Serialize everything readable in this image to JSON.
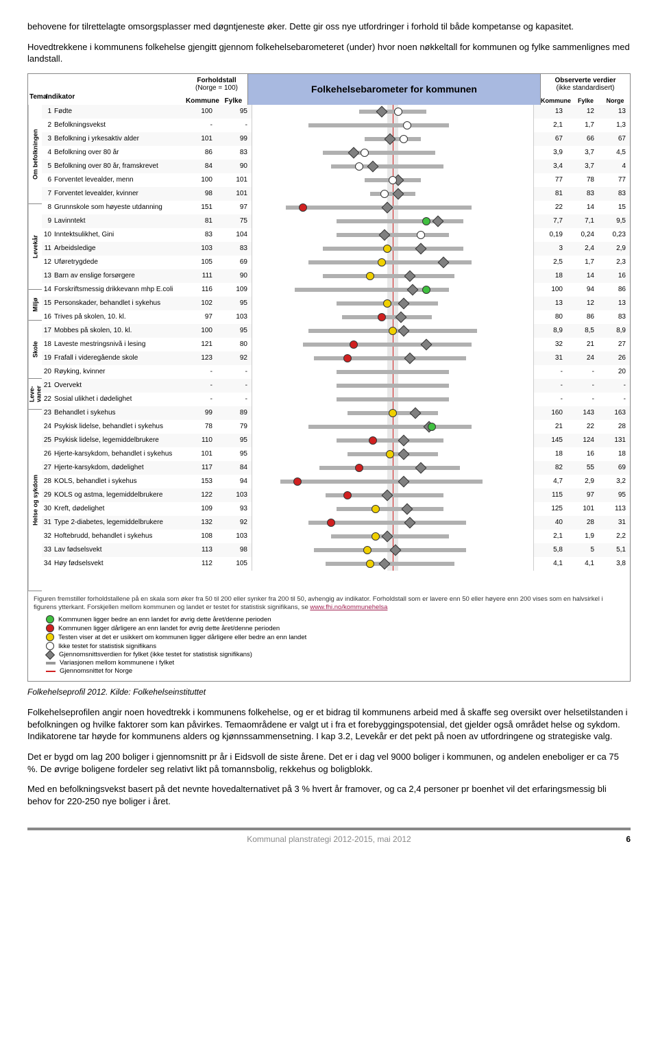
{
  "intro": {
    "p1": "behovene for tilrettelagte omsorgsplasser med døgntjeneste øker. Dette gir oss nye utfordringer i forhold til både kompetanse og kapasitet.",
    "p2": "Hovedtrekkene i kommunens folkehelse gjengitt gjennom folkehelsebarometeret (under) hvor noen nøkkeltall for kommunen og fylke sammenlignes med landstall."
  },
  "chart": {
    "title": "Folkehelsebarometer for kommunen",
    "forhold_label": "Forholdstall",
    "forhold_sub": "(Norge = 100)",
    "obs_label": "Observerte verdier",
    "obs_sub": "(ikke standardisert)",
    "col_tema": "Tema",
    "col_indikator": "Indikator",
    "col_kommune": "Kommune",
    "col_fylke": "Fylke",
    "col_norge": "Norge",
    "groups": [
      {
        "label": "Om befolkningen",
        "rows": 7
      },
      {
        "label": "Levekår",
        "rows": 6
      },
      {
        "label": "Miljø",
        "rows": 2
      },
      {
        "label": "Skole",
        "rows": 4
      },
      {
        "label": "Leve-\nvaner",
        "rows": 2
      },
      {
        "label": "Helse og sykdom",
        "rows": 13
      }
    ],
    "rows": [
      {
        "n": 1,
        "ind": "Fødte",
        "k": "100",
        "f": "95",
        "mark": {
          "pos": 52,
          "shape": "circle",
          "color": "#fff"
        },
        "dia": {
          "pos": 46,
          "color": "#808080"
        },
        "range": [
          38,
          62
        ],
        "ok": "13",
        "of": "12",
        "on": "13"
      },
      {
        "n": 2,
        "ind": "Befolkningsvekst",
        "k": "-",
        "f": "-",
        "mark": {
          "pos": 55,
          "shape": "circle",
          "color": "#fff"
        },
        "range": [
          20,
          70
        ],
        "ok": "2,1",
        "of": "1,7",
        "on": "1,3"
      },
      {
        "n": 3,
        "ind": "Befolkning i yrkesaktiv alder",
        "k": "101",
        "f": "99",
        "mark": {
          "pos": 54,
          "shape": "circle",
          "color": "#fff"
        },
        "dia": {
          "pos": 49,
          "color": "#808080"
        },
        "range": [
          40,
          60
        ],
        "ok": "67",
        "of": "66",
        "on": "67"
      },
      {
        "n": 4,
        "ind": "Befolkning over 80 år",
        "k": "86",
        "f": "83",
        "mark": {
          "pos": 40,
          "shape": "circle",
          "color": "#fff"
        },
        "dia": {
          "pos": 36,
          "color": "#808080"
        },
        "range": [
          25,
          65
        ],
        "ok": "3,9",
        "of": "3,7",
        "on": "4,5"
      },
      {
        "n": 5,
        "ind": "Befolkning over 80 år, framskrevet",
        "k": "84",
        "f": "90",
        "mark": {
          "pos": 38,
          "shape": "circle",
          "color": "#fff"
        },
        "dia": {
          "pos": 43,
          "color": "#808080"
        },
        "range": [
          28,
          68
        ],
        "ok": "3,4",
        "of": "3,7",
        "on": "4"
      },
      {
        "n": 6,
        "ind": "Forventet levealder, menn",
        "k": "100",
        "f": "101",
        "mark": {
          "pos": 50,
          "shape": "circle",
          "color": "#fff"
        },
        "dia": {
          "pos": 52,
          "color": "#808080"
        },
        "range": [
          40,
          60
        ],
        "ok": "77",
        "of": "78",
        "on": "77"
      },
      {
        "n": 7,
        "ind": "Forventet levealder, kvinner",
        "k": "98",
        "f": "101",
        "mark": {
          "pos": 47,
          "shape": "circle",
          "color": "#fff"
        },
        "dia": {
          "pos": 52,
          "color": "#808080"
        },
        "range": [
          42,
          58
        ],
        "ok": "81",
        "of": "83",
        "on": "83"
      },
      {
        "n": 8,
        "ind": "Grunnskole som høyeste utdanning",
        "k": "151",
        "f": "97",
        "mark": {
          "pos": 18,
          "shape": "circle",
          "color": "#d02020"
        },
        "dia": {
          "pos": 48,
          "color": "#808080"
        },
        "range": [
          12,
          78
        ],
        "ok": "22",
        "of": "14",
        "on": "15"
      },
      {
        "n": 9,
        "ind": "Lavinntekt",
        "k": "81",
        "f": "75",
        "mark": {
          "pos": 62,
          "shape": "circle",
          "color": "#40c040"
        },
        "dia": {
          "pos": 66,
          "color": "#808080"
        },
        "range": [
          30,
          75
        ],
        "ok": "7,7",
        "of": "7,1",
        "on": "9,5"
      },
      {
        "n": 10,
        "ind": "Inntektsulikhet, Gini",
        "k": "83",
        "f": "104",
        "mark": {
          "pos": 60,
          "shape": "circle",
          "color": "#fff"
        },
        "dia": {
          "pos": 47,
          "color": "#808080"
        },
        "range": [
          30,
          70
        ],
        "ok": "0,19",
        "of": "0,24",
        "on": "0,23"
      },
      {
        "n": 11,
        "ind": "Arbeidsledige",
        "k": "103",
        "f": "83",
        "mark": {
          "pos": 48,
          "shape": "circle",
          "color": "#f0d000"
        },
        "dia": {
          "pos": 60,
          "color": "#808080"
        },
        "range": [
          25,
          75
        ],
        "ok": "3",
        "of": "2,4",
        "on": "2,9"
      },
      {
        "n": 12,
        "ind": "Uføretrygdede",
        "k": "105",
        "f": "69",
        "mark": {
          "pos": 46,
          "shape": "circle",
          "color": "#f0d000"
        },
        "dia": {
          "pos": 68,
          "color": "#808080"
        },
        "range": [
          20,
          78
        ],
        "ok": "2,5",
        "of": "1,7",
        "on": "2,3"
      },
      {
        "n": 13,
        "ind": "Barn av enslige forsørgere",
        "k": "111",
        "f": "90",
        "mark": {
          "pos": 42,
          "shape": "circle",
          "color": "#f0d000"
        },
        "dia": {
          "pos": 56,
          "color": "#808080"
        },
        "range": [
          25,
          72
        ],
        "ok": "18",
        "of": "14",
        "on": "16"
      },
      {
        "n": 14,
        "ind": "Forskriftsmessig drikkevann mhp E.coli",
        "k": "116",
        "f": "109",
        "mark": {
          "pos": 62,
          "shape": "circle",
          "color": "#40c040"
        },
        "dia": {
          "pos": 57,
          "color": "#808080"
        },
        "range": [
          15,
          70
        ],
        "ok": "100",
        "of": "94",
        "on": "86"
      },
      {
        "n": 15,
        "ind": "Personskader, behandlet i sykehus",
        "k": "102",
        "f": "95",
        "mark": {
          "pos": 48,
          "shape": "circle",
          "color": "#f0d000"
        },
        "dia": {
          "pos": 54,
          "color": "#808080"
        },
        "range": [
          30,
          66
        ],
        "ok": "13",
        "of": "12",
        "on": "13"
      },
      {
        "n": 16,
        "ind": "Trives på skolen, 10. kl.",
        "k": "97",
        "f": "103",
        "mark": {
          "pos": 46,
          "shape": "circle",
          "color": "#d02020"
        },
        "dia": {
          "pos": 53,
          "color": "#808080"
        },
        "range": [
          32,
          64
        ],
        "ok": "80",
        "of": "86",
        "on": "83"
      },
      {
        "n": 17,
        "ind": "Mobbes på skolen, 10. kl.",
        "k": "100",
        "f": "95",
        "mark": {
          "pos": 50,
          "shape": "circle",
          "color": "#f0d000"
        },
        "dia": {
          "pos": 54,
          "color": "#808080"
        },
        "range": [
          20,
          80
        ],
        "ok": "8,9",
        "of": "8,5",
        "on": "8,9"
      },
      {
        "n": 18,
        "ind": "Laveste mestringsnivå i lesing",
        "k": "121",
        "f": "80",
        "mark": {
          "pos": 36,
          "shape": "circle",
          "color": "#d02020"
        },
        "dia": {
          "pos": 62,
          "color": "#808080"
        },
        "range": [
          18,
          78
        ],
        "ok": "32",
        "of": "21",
        "on": "27"
      },
      {
        "n": 19,
        "ind": "Frafall i videregående skole",
        "k": "123",
        "f": "92",
        "mark": {
          "pos": 34,
          "shape": "circle",
          "color": "#d02020"
        },
        "dia": {
          "pos": 56,
          "color": "#808080"
        },
        "range": [
          22,
          76
        ],
        "ok": "31",
        "of": "24",
        "on": "26"
      },
      {
        "n": 20,
        "ind": "Røyking, kvinner",
        "k": "-",
        "f": "-",
        "range": [
          30,
          70
        ],
        "ok": "-",
        "of": "-",
        "on": "20"
      },
      {
        "n": 21,
        "ind": "Overvekt",
        "k": "-",
        "f": "-",
        "range": [
          30,
          70
        ],
        "ok": "-",
        "of": "-",
        "on": "-"
      },
      {
        "n": 22,
        "ind": "Sosial ulikhet i dødelighet",
        "k": "-",
        "f": "-",
        "range": [
          30,
          70
        ],
        "ok": "-",
        "of": "-",
        "on": "-"
      },
      {
        "n": 23,
        "ind": "Behandlet i sykehus",
        "k": "99",
        "f": "89",
        "mark": {
          "pos": 50,
          "shape": "circle",
          "color": "#f0d000"
        },
        "dia": {
          "pos": 58,
          "color": "#808080"
        },
        "range": [
          34,
          66
        ],
        "ok": "160",
        "of": "143",
        "on": "163"
      },
      {
        "n": 24,
        "ind": "Psykisk lidelse, behandlet i sykehus",
        "k": "78",
        "f": "79",
        "mark": {
          "pos": 64,
          "shape": "circle",
          "color": "#40c040"
        },
        "dia": {
          "pos": 63,
          "color": "#808080"
        },
        "range": [
          20,
          78
        ],
        "ok": "21",
        "of": "22",
        "on": "28"
      },
      {
        "n": 25,
        "ind": "Psykisk lidelse, legemiddelbrukere",
        "k": "110",
        "f": "95",
        "mark": {
          "pos": 43,
          "shape": "circle",
          "color": "#d02020"
        },
        "dia": {
          "pos": 54,
          "color": "#808080"
        },
        "range": [
          30,
          68
        ],
        "ok": "145",
        "of": "124",
        "on": "131"
      },
      {
        "n": 26,
        "ind": "Hjerte-karsykdom, behandlet i sykehus",
        "k": "101",
        "f": "95",
        "mark": {
          "pos": 49,
          "shape": "circle",
          "color": "#f0d000"
        },
        "dia": {
          "pos": 54,
          "color": "#808080"
        },
        "range": [
          34,
          66
        ],
        "ok": "18",
        "of": "16",
        "on": "18"
      },
      {
        "n": 27,
        "ind": "Hjerte-karsykdom, dødelighet",
        "k": "117",
        "f": "84",
        "mark": {
          "pos": 38,
          "shape": "circle",
          "color": "#d02020"
        },
        "dia": {
          "pos": 60,
          "color": "#808080"
        },
        "range": [
          24,
          74
        ],
        "ok": "82",
        "of": "55",
        "on": "69"
      },
      {
        "n": 28,
        "ind": "KOLS, behandlet i sykehus",
        "k": "153",
        "f": "94",
        "mark": {
          "pos": 16,
          "shape": "circle",
          "color": "#d02020"
        },
        "dia": {
          "pos": 54,
          "color": "#808080"
        },
        "range": [
          10,
          82
        ],
        "ok": "4,7",
        "of": "2,9",
        "on": "3,2"
      },
      {
        "n": 29,
        "ind": "KOLS og astma, legemiddelbrukere",
        "k": "122",
        "f": "103",
        "mark": {
          "pos": 34,
          "shape": "circle",
          "color": "#d02020"
        },
        "dia": {
          "pos": 48,
          "color": "#808080"
        },
        "range": [
          26,
          68
        ],
        "ok": "115",
        "of": "97",
        "on": "95"
      },
      {
        "n": 30,
        "ind": "Kreft, dødelighet",
        "k": "109",
        "f": "93",
        "mark": {
          "pos": 44,
          "shape": "circle",
          "color": "#f0d000"
        },
        "dia": {
          "pos": 55,
          "color": "#808080"
        },
        "range": [
          30,
          68
        ],
        "ok": "125",
        "of": "101",
        "on": "113"
      },
      {
        "n": 31,
        "ind": "Type 2-diabetes, legemiddelbrukere",
        "k": "132",
        "f": "92",
        "mark": {
          "pos": 28,
          "shape": "circle",
          "color": "#d02020"
        },
        "dia": {
          "pos": 56,
          "color": "#808080"
        },
        "range": [
          20,
          76
        ],
        "ok": "40",
        "of": "28",
        "on": "31"
      },
      {
        "n": 32,
        "ind": "Hoftebrudd, behandlet i sykehus",
        "k": "108",
        "f": "103",
        "mark": {
          "pos": 44,
          "shape": "circle",
          "color": "#f0d000"
        },
        "dia": {
          "pos": 48,
          "color": "#808080"
        },
        "range": [
          28,
          70
        ],
        "ok": "2,1",
        "of": "1,9",
        "on": "2,2"
      },
      {
        "n": 33,
        "ind": "Lav fødselsvekt",
        "k": "113",
        "f": "98",
        "mark": {
          "pos": 41,
          "shape": "circle",
          "color": "#f0d000"
        },
        "dia": {
          "pos": 51,
          "color": "#808080"
        },
        "range": [
          22,
          76
        ],
        "ok": "5,8",
        "of": "5",
        "on": "5,1"
      },
      {
        "n": 34,
        "ind": "Høy fødselsvekt",
        "k": "112",
        "f": "105",
        "mark": {
          "pos": 42,
          "shape": "circle",
          "color": "#f0d000"
        },
        "dia": {
          "pos": 47,
          "color": "#808080"
        },
        "range": [
          26,
          72
        ],
        "ok": "4,1",
        "of": "4,1",
        "on": "3,8"
      }
    ],
    "footnote_text": "Figuren fremstiller forholdstallene på en skala som øker fra 50 til 200 eller synker fra 200 til 50, avhengig av indikator. Forholdstall som er lavere enn 50 eller høyere enn 200 vises som en halvsirkel i figurens ytterkant. Forskjellen mellom kommunen og landet er testet for statistisk signifikans, se ",
    "footnote_link": "www.fhi.no/kommunehelsa",
    "legend": {
      "green": "Kommunen ligger bedre an enn landet for øvrig dette året/denne perioden",
      "red": "Kommunen ligger dårligere an enn landet for øvrig dette året/denne perioden",
      "yellow": "Testen viser at det er usikkert om kommunen ligger dårligere eller bedre an enn landet",
      "white": "Ikke testet for statistisk signifikans",
      "grey": "Gjennomsnittsverdien for fylket (ikke testet for statistisk signifikans)",
      "bar": "Variasjonen mellom kommunene i fylket",
      "line": "Gjennomsnittet for Norge"
    },
    "colors": {
      "green": "#40c040",
      "red": "#d02020",
      "yellow": "#f0d000",
      "white": "#ffffff",
      "grey": "#808080"
    }
  },
  "caption": "Folkehelseprofil 2012. Kilde: Folkehelseinstituttet",
  "body": {
    "p1": "Folkehelseprofilen angir noen hovedtrekk i kommunens folkehelse, og er et bidrag til kommunens arbeid med å skaffe seg oversikt over helsetilstanden i befolkningen og hvilke faktorer som kan påvirkes. Temaområdene er valgt ut i fra et forebyggingspotensial, det gjelder også området helse og sykdom. Indikatorene tar høyde for kommunens alders og kjønnssammensetning. I kap 3.2, Levekår er det pekt på noen av utfordringene og strategiske valg.",
    "p2": "Det er bygd om lag 200 boliger i gjennomsnitt pr år i Eidsvoll de siste årene. Det er i dag vel 9000 boliger i kommunen, og andelen eneboliger er ca 75 %. De øvrige boligene fordeler seg relativt likt på tomannsbolig, rekkehus og boligblokk.",
    "p3": "Med en befolkningsvekst basert på det nevnte hovedalternativet på 3 % hvert år framover, og ca 2,4 personer pr boenhet vil det erfaringsmessig bli behov for 220-250 nye boliger i året."
  },
  "footer": {
    "text": "Kommunal planstrategi 2012-2015, mai 2012",
    "page": "6"
  }
}
